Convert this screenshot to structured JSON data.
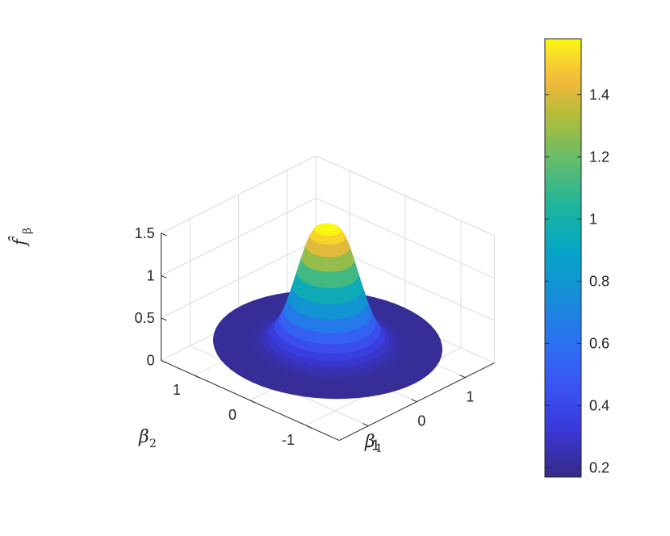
{
  "chart_data": {
    "type": "surface",
    "colormap": "parula",
    "grid": true,
    "x_axis": {
      "label": "β",
      "label_sub": "1",
      "ticks": [
        "-1",
        "0",
        "1"
      ],
      "tick_values": [
        -1,
        0,
        1
      ],
      "range": [
        -1.6,
        1.6
      ]
    },
    "y_axis": {
      "label": "β",
      "label_sub": "2",
      "ticks": [
        "-1",
        "0",
        "1"
      ],
      "tick_values": [
        -1,
        0,
        1
      ],
      "range": [
        -1.6,
        1.6
      ]
    },
    "z_axis": {
      "label": "f̂",
      "label_sub": "β",
      "ticks": [
        "0",
        "0.5",
        "1",
        "1.5"
      ],
      "tick_values": [
        0,
        0.5,
        1,
        1.5
      ],
      "range": [
        0,
        1.5
      ]
    },
    "colorbar": {
      "ticks": [
        "0.2",
        "0.4",
        "0.6",
        "0.8",
        "1",
        "1.2",
        "1.4"
      ],
      "tick_values": [
        0.2,
        0.4,
        0.6,
        0.8,
        1.0,
        1.2,
        1.4
      ],
      "range": [
        0.17,
        1.58
      ]
    },
    "surface": {
      "shape": "radially symmetric bump on a disk",
      "domain_radius": 1.55,
      "peak_value": 1.58,
      "peak_radius": 0.12,
      "base_value": 0.2,
      "gaussian_width": 0.42
    }
  }
}
